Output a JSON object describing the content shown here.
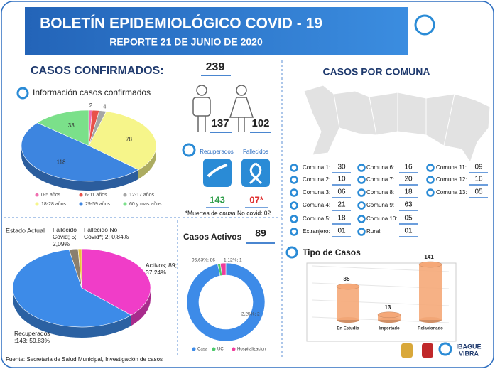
{
  "header": {
    "title": "BOLETÍN EPIDEMIOLÓGICO COVID - 19",
    "subtitle": "REPORTE 21 DE JUNIO DE 2020",
    "logo": [
      "IBAGUÉ",
      "VIBRA"
    ]
  },
  "confirmed": {
    "heading": "CASOS CONFIRMADOS:",
    "total": 239,
    "men": 137,
    "women": 102,
    "recovered_label": "Recuperados",
    "deceased_label": "Fallecidos",
    "recovered": 143,
    "deceased": "07*",
    "note": "*Muertes de causa No covid: 02"
  },
  "comunas": {
    "heading": "CASOS POR COMUNA",
    "columns": [
      [
        {
          "label": "Comuna 1:",
          "value": "30"
        },
        {
          "label": "Comuna 2:",
          "value": "10"
        },
        {
          "label": "Comuna 3:",
          "value": "06"
        },
        {
          "label": "Comuna 4:",
          "value": "21"
        },
        {
          "label": "Comuna 5:",
          "value": "18"
        },
        {
          "label": "Extranjero:",
          "value": "01"
        }
      ],
      [
        {
          "label": "Comuna 6:",
          "value": "16"
        },
        {
          "label": "Comuna 7:",
          "value": "20"
        },
        {
          "label": "Comuna 8:",
          "value": "18"
        },
        {
          "label": "Comuna 9:",
          "value": "63"
        },
        {
          "label": "Comuna 10:",
          "value": "05"
        },
        {
          "label": "Rural:",
          "value": "01"
        }
      ],
      [
        {
          "label": "Comuna 11:",
          "value": "09"
        },
        {
          "label": "Comuna 12:",
          "value": "16"
        },
        {
          "label": "Comuna 13:",
          "value": "05"
        }
      ]
    ]
  },
  "source": "Fuente: Secretaria de Salud Municipal, Investigación de casos",
  "chart_data": [
    {
      "type": "pie3d",
      "title": "Información casos confirmados",
      "categories": [
        "0-5 años",
        "6-11 años",
        "12-17 años",
        "18-28 años",
        "29-59 años",
        "60 y mas años"
      ],
      "values": [
        2,
        4,
        4,
        78,
        118,
        33
      ],
      "value_labels": [
        "2",
        null,
        "4",
        "78",
        "118",
        "33"
      ],
      "colors": [
        "#f06fb0",
        "#e8514a",
        "#a5a5a5",
        "#f6f58a",
        "#3d85e0",
        "#7be08a"
      ]
    },
    {
      "type": "pie3d",
      "title": "Estado Actual",
      "values": [
        89,
        143,
        5,
        2
      ],
      "value_labels": [
        "Activos; 89; 37,24%",
        "Recuperados ;143; 59,83%",
        "Fallecido Covid; 5; 2,09%",
        "Fallecido No Covid*; 2; 0,84%"
      ],
      "colors": [
        "#f03dc8",
        "#3d8be8",
        "#8a7f6e",
        "#e8c33c"
      ]
    },
    {
      "type": "donut",
      "title": "Casos Activos",
      "total": 89,
      "categories": [
        "Casa",
        "UCI",
        "Hospitalizacion"
      ],
      "values": [
        86,
        1,
        2
      ],
      "value_labels": [
        "96,63%; 86",
        "1,12%; 1",
        "2,25%; 2"
      ],
      "colors": [
        "#3d8be8",
        "#4cc96a",
        "#f03d9c"
      ]
    },
    {
      "type": "cylinder",
      "title": "Tipo de Casos",
      "categories": [
        "En Estudio",
        "Importado",
        "Relacionado"
      ],
      "values": [
        85,
        13,
        141
      ],
      "color": "#f5a878"
    }
  ]
}
